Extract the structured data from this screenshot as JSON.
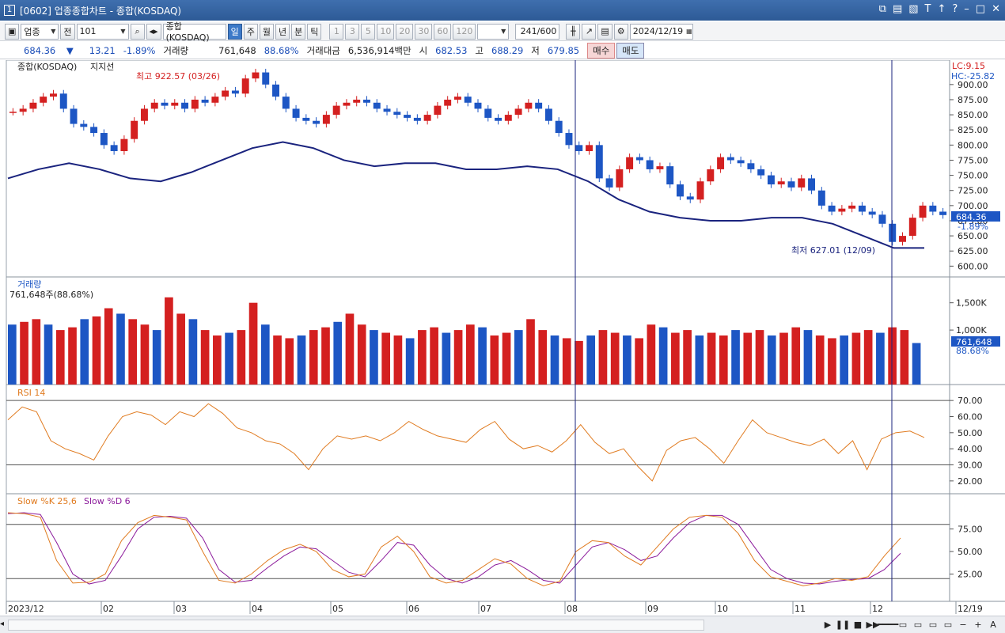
{
  "window": {
    "title": "[0602] 업종종합차트 - 종합(KOSDAQ)",
    "app_number": "1"
  },
  "toolbar": {
    "sector_select": "업종",
    "prev_label": "전",
    "code": "101",
    "index_name": "종합(KOSDAQ)",
    "periods": [
      "일",
      "주",
      "월",
      "년",
      "분",
      "틱"
    ],
    "intervals": [
      "1",
      "3",
      "5",
      "10",
      "20",
      "30",
      "60",
      "120"
    ],
    "count": "241",
    "count_max": "/600",
    "date": "2024/12/19"
  },
  "quote": {
    "price": "684.36",
    "arrow": "▼",
    "change": "13.21",
    "change_pct": "-1.89%",
    "volume_label": "거래량",
    "volume": "761,648",
    "volume_pct": "88.68%",
    "amount_label": "거래대금",
    "amount": "6,536,914백만",
    "open_label": "시",
    "open": "682.53",
    "high_label": "고",
    "high": "688.29",
    "low_label": "저",
    "low": "679.85",
    "buy_label": "매수",
    "sell_label": "매도"
  },
  "panels": {
    "price": {
      "name": "종합(KOSDAQ)",
      "sub": "지지선",
      "lc": "LC:9.15",
      "hc": "HC:-25.82",
      "high_annot": "최고 922.57 (03/26)",
      "low_annot": "최저 627.01 (12/09)",
      "last_value": "684.36",
      "last_pct": "-1.89%",
      "yticks": [
        "900.00",
        "875.00",
        "850.00",
        "825.00",
        "800.00",
        "775.00",
        "750.00",
        "725.00",
        "700.00",
        "675.00",
        "650.00",
        "625.00",
        "600.00"
      ]
    },
    "volume": {
      "name": "거래량",
      "value_line": "761,648주(88.68%)",
      "yticks": [
        "1,500K",
        "1,000K"
      ],
      "last_value": "761,648",
      "last_pct": "88.68%"
    },
    "rsi": {
      "name": "RSI 14",
      "yticks": [
        "70.00",
        "60.00",
        "50.00",
        "40.00",
        "30.00",
        "20.00"
      ]
    },
    "stoch": {
      "k_name": "Slow %K 25,6",
      "d_name": "Slow %D 6",
      "yticks": [
        "75.00",
        "50.00",
        "25.00"
      ]
    }
  },
  "xaxis": {
    "labels": [
      "2023/12",
      "02",
      "03",
      "04",
      "05",
      "06",
      "07",
      "08",
      "09",
      "10",
      "11",
      "12",
      "12/19"
    ]
  },
  "colors": {
    "up": "#d42020",
    "down": "#1d56c4",
    "ma": "#1a237e",
    "rsi": "#e07b20",
    "slowd": "#8b1a9b"
  },
  "chart_data": {
    "type": "candlestick",
    "candles_approx_close": [
      855,
      860,
      870,
      880,
      885,
      860,
      835,
      830,
      820,
      800,
      790,
      810,
      840,
      860,
      870,
      865,
      870,
      860,
      875,
      870,
      880,
      890,
      885,
      910,
      920,
      900,
      880,
      860,
      845,
      840,
      835,
      850,
      865,
      870,
      875,
      870,
      860,
      855,
      850,
      845,
      840,
      850,
      865,
      875,
      880,
      870,
      860,
      845,
      840,
      850,
      860,
      870,
      860,
      840,
      820,
      800,
      790,
      800,
      745,
      730,
      760,
      780,
      775,
      760,
      765,
      735,
      715,
      710,
      740,
      760,
      780,
      775,
      770,
      760,
      750,
      735,
      740,
      730,
      745,
      725,
      700,
      690,
      695,
      700,
      690,
      685,
      670,
      640,
      650,
      680,
      700,
      690,
      684.36
    ],
    "ma_approx": [
      745,
      760,
      770,
      760,
      745,
      740,
      755,
      775,
      795,
      805,
      795,
      775,
      765,
      770,
      770,
      760,
      760,
      765,
      760,
      740,
      710,
      690,
      680,
      675,
      675,
      680,
      680,
      670,
      650,
      630,
      630
    ],
    "volume_approx_k": [
      1100,
      1150,
      1200,
      1100,
      1000,
      1050,
      1200,
      1250,
      1400,
      1300,
      1200,
      1100,
      1000,
      1600,
      1300,
      1200,
      1000,
      900,
      950,
      1000,
      1500,
      1100,
      900,
      850,
      900,
      1000,
      1050,
      1150,
      1300,
      1100,
      1000,
      950,
      900,
      850,
      1000,
      1050,
      950,
      1000,
      1100,
      1050,
      900,
      950,
      1000,
      1200,
      1000,
      900,
      850,
      800,
      900,
      1000,
      950,
      900,
      850,
      1100,
      1050,
      950,
      1000,
      900,
      950,
      900,
      1000,
      950,
      1000,
      900,
      950,
      1050,
      1000,
      900,
      850,
      900,
      950,
      1000,
      950,
      1050,
      1000,
      761.648
    ],
    "rsi_approx": [
      58,
      66,
      63,
      45,
      40,
      37,
      33,
      48,
      60,
      63,
      61,
      55,
      63,
      60,
      68,
      62,
      53,
      50,
      45,
      43,
      37,
      27,
      40,
      48,
      46,
      48,
      45,
      50,
      57,
      52,
      48,
      46,
      44,
      52,
      57,
      46,
      40,
      42,
      38,
      45,
      55,
      44,
      37,
      40,
      29,
      20,
      39,
      45,
      47,
      40,
      31,
      45,
      58,
      50,
      47,
      44,
      42,
      46,
      37,
      45,
      27,
      46,
      50,
      51,
      47
    ],
    "slowk_approx": [
      93,
      92,
      88,
      40,
      15,
      16,
      25,
      62,
      82,
      90,
      88,
      85,
      50,
      18,
      15,
      25,
      40,
      52,
      58,
      50,
      30,
      22,
      25,
      55,
      67,
      50,
      22,
      15,
      18,
      30,
      42,
      36,
      20,
      12,
      17,
      50,
      62,
      60,
      45,
      35,
      55,
      75,
      88,
      90,
      88,
      70,
      40,
      22,
      17,
      12,
      15,
      20,
      18,
      22,
      45,
      65
    ],
    "slowd_approx": [
      92,
      93,
      91,
      60,
      25,
      14,
      18,
      45,
      75,
      88,
      89,
      87,
      65,
      30,
      16,
      18,
      32,
      45,
      55,
      53,
      40,
      27,
      22,
      40,
      60,
      57,
      35,
      20,
      15,
      22,
      35,
      40,
      30,
      18,
      15,
      35,
      55,
      60,
      52,
      40,
      45,
      65,
      82,
      90,
      90,
      80,
      55,
      30,
      20,
      15,
      14,
      17,
      19,
      20,
      30,
      48
    ],
    "xlabel": "",
    "ylabel": ""
  }
}
